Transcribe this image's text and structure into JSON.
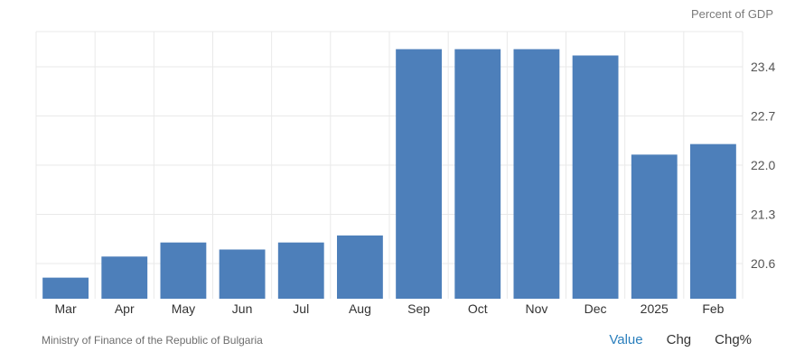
{
  "colors": {
    "bar": "#4d7fba",
    "grid": "#e9e9e9",
    "axis_text": "#555555",
    "tab_active": "#2a7fbd",
    "tab_inactive": "#333333"
  },
  "unit_label": "Percent of GDP",
  "chart_data": {
    "type": "bar",
    "categories": [
      "Mar",
      "Apr",
      "May",
      "Jun",
      "Jul",
      "Aug",
      "Sep",
      "Oct",
      "Nov",
      "Dec",
      "2025",
      "Feb"
    ],
    "values": [
      20.4,
      20.7,
      20.9,
      20.8,
      20.9,
      21.0,
      23.65,
      23.65,
      23.65,
      23.56,
      22.15,
      22.3
    ],
    "title": "",
    "xlabel": "",
    "ylabel": "Percent of GDP",
    "ylim": [
      20.1,
      23.9
    ],
    "yticks": [
      20.6,
      21.3,
      22.0,
      22.7,
      23.4
    ],
    "ytick_labels": [
      "20.6",
      "21.3",
      "22.0",
      "22.7",
      "23.4"
    ],
    "grid": true,
    "y_axis_side": "right"
  },
  "footer": {
    "source": "Ministry of Finance of the Republic of Bulgaria",
    "tabs": [
      {
        "label": "Value",
        "active": true
      },
      {
        "label": "Chg",
        "active": false
      },
      {
        "label": "Chg%",
        "active": false
      }
    ]
  }
}
